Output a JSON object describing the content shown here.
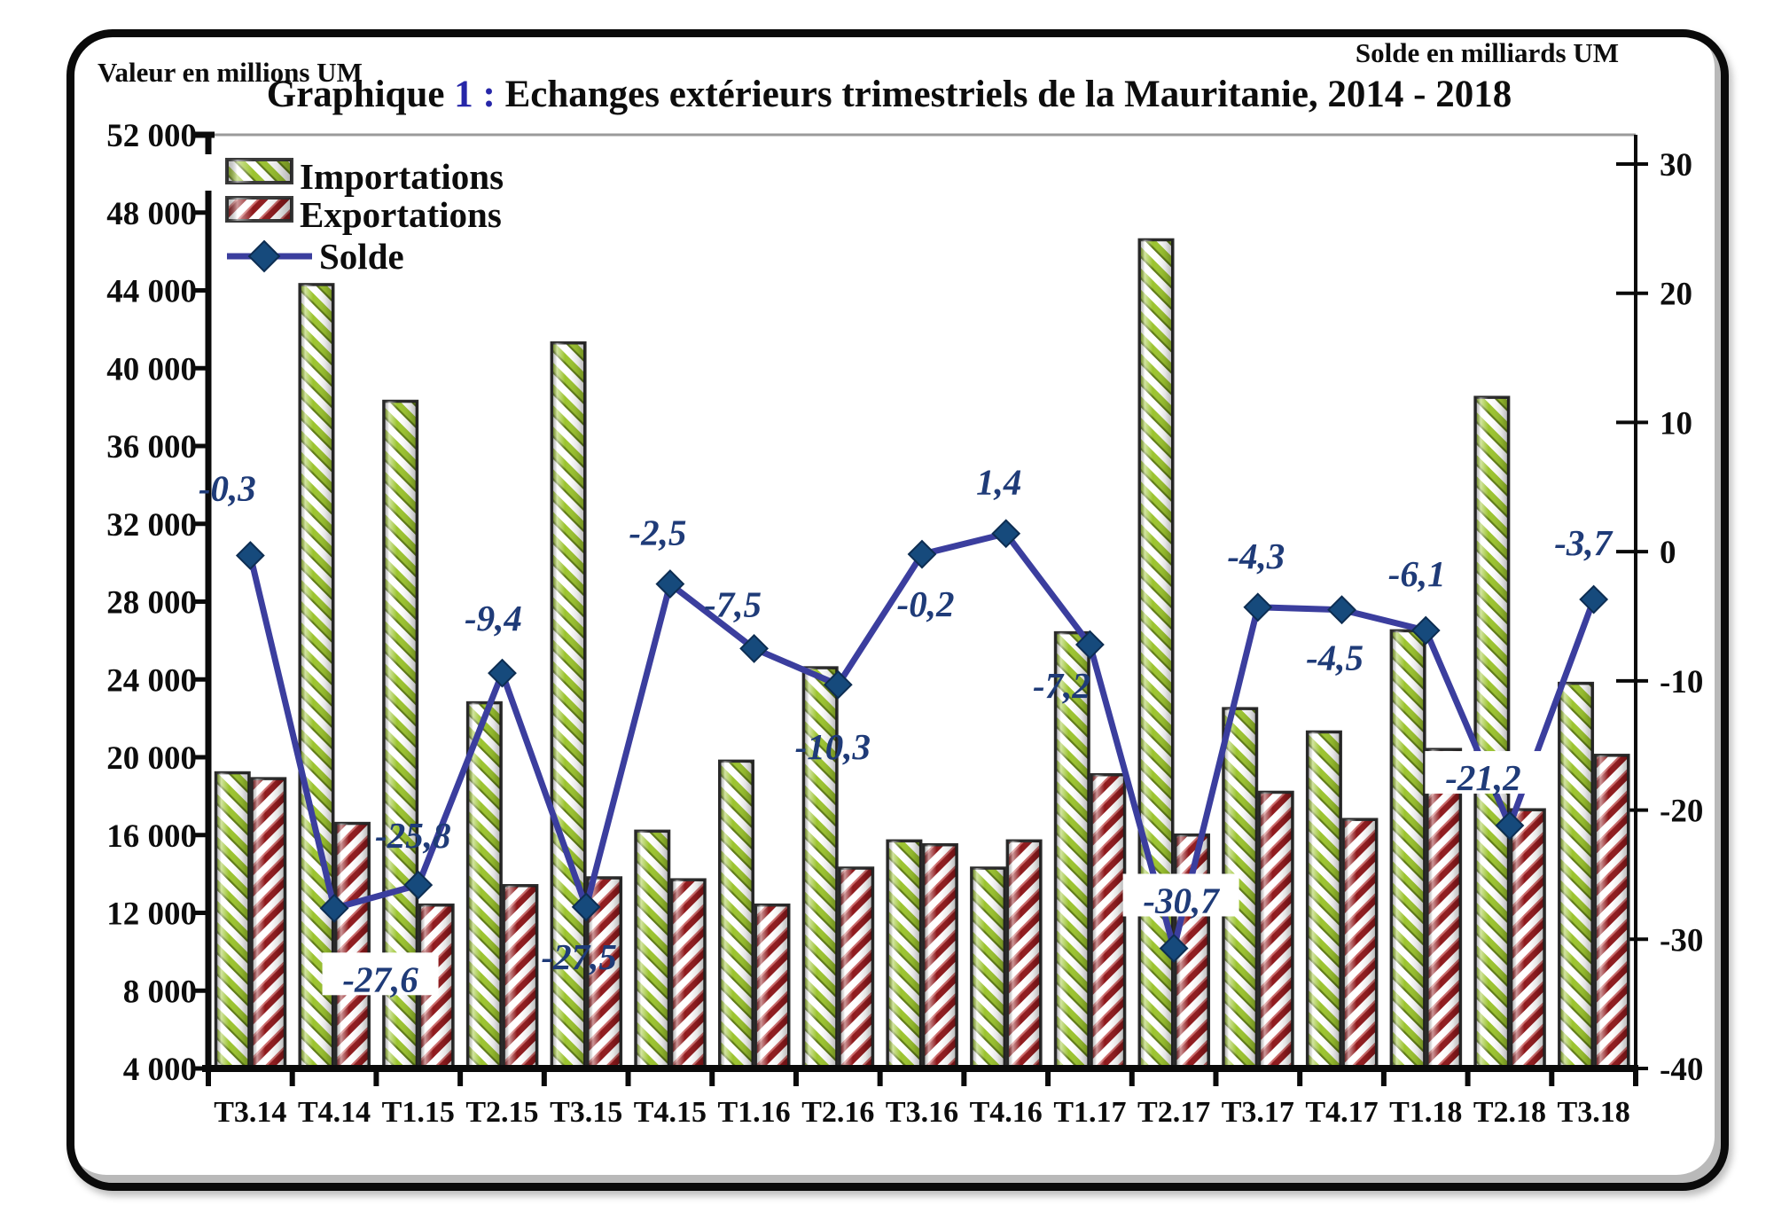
{
  "header": {
    "left_axis_title": "Valeur en millions UM",
    "right_axis_title": "Solde en milliards UM",
    "title_prefix": "Graphique ",
    "title_accent": "1 :",
    "title_rest": " Echanges extérieurs trimestriels de la Mauritanie, 2014 - 2018"
  },
  "legend": {
    "items": [
      {
        "label": "Importations",
        "swatch": "green-hatch-swatch"
      },
      {
        "label": "Exportations",
        "swatch": "red-hatch-swatch"
      },
      {
        "label": "Solde",
        "swatch": "line-diamond-swatch"
      }
    ]
  },
  "chart_data": {
    "type": "combo-bar-line",
    "title": "Graphique 1 : Echanges extérieurs trimestriels de la Mauritanie, 2014 - 2018",
    "categories": [
      "T3.14",
      "T4.14",
      "T1.15",
      "T2.15",
      "T3.15",
      "T4.15",
      "T1.16",
      "T2.16",
      "T3.16",
      "T4.16",
      "T1.17",
      "T2.17",
      "T3.17",
      "T4.17",
      "T1.18",
      "T2.18",
      "T3.18"
    ],
    "series": [
      {
        "name": "Importations",
        "type": "bar",
        "axis": "left",
        "values": [
          19200,
          44300,
          38300,
          22800,
          41300,
          16200,
          19800,
          24600,
          15700,
          14300,
          26400,
          46600,
          22500,
          21300,
          26500,
          38500,
          23800
        ]
      },
      {
        "name": "Exportations",
        "type": "bar",
        "axis": "left",
        "values": [
          18900,
          16600,
          12400,
          13400,
          13800,
          13700,
          12400,
          14300,
          15500,
          15700,
          19100,
          16000,
          18200,
          16800,
          20400,
          17300,
          20100
        ]
      },
      {
        "name": "Solde",
        "type": "line",
        "axis": "right",
        "values": [
          -0.3,
          -27.6,
          -25.8,
          -9.4,
          -27.5,
          -2.5,
          -7.5,
          -10.3,
          -0.2,
          1.4,
          -7.2,
          -30.7,
          -4.3,
          -4.5,
          -6.1,
          -21.2,
          -3.7
        ],
        "point_labels": [
          "-0,3",
          "-27,6",
          "-25,8",
          "-9,4",
          "-27,5",
          "-2,5",
          "-7,5",
          "-10,3",
          "-0,2",
          "1,4",
          "-7,2",
          "-30,7",
          "-4,3",
          "-4,5",
          "-6,1",
          "-21,2",
          "-3,7"
        ],
        "label_offsets": [
          [
            -26,
            -70
          ],
          [
            52,
            86
          ],
          [
            -6,
            -50
          ],
          [
            -10,
            -56
          ],
          [
            -8,
            62
          ],
          [
            -14,
            -52
          ],
          [
            -24,
            -44
          ],
          [
            -6,
            76
          ],
          [
            4,
            62
          ],
          [
            -8,
            -52
          ],
          [
            -32,
            52
          ],
          [
            8,
            -48
          ],
          [
            -2,
            -52
          ],
          [
            -8,
            60
          ],
          [
            -10,
            -58
          ],
          [
            -30,
            -48
          ],
          [
            -12,
            -58
          ]
        ],
        "label_boxed": [
          false,
          true,
          false,
          false,
          false,
          false,
          false,
          false,
          false,
          false,
          false,
          true,
          false,
          false,
          false,
          true,
          false
        ]
      }
    ],
    "y_left": {
      "title": "Valeur en millions UM",
      "min": 4000,
      "max": 52000,
      "step": 4000,
      "tick_labels": [
        "52 000",
        "48 000",
        "44 000",
        "40 000",
        "36 000",
        "32 000",
        "28 000",
        "24 000",
        "20 000",
        "16 000",
        "12 000",
        "8 000",
        "4 000"
      ]
    },
    "y_right": {
      "title": "Solde en milliards UM",
      "min": -40,
      "max": 30,
      "step": 10,
      "tick_labels": [
        "30",
        "20",
        "10",
        "0",
        "-10",
        "-20",
        "-30",
        "-40"
      ]
    },
    "legend_position": "top-left-inside",
    "grid": "off"
  },
  "colors": {
    "import_stripe": "#9cc42f",
    "import_stripe_dark": "#5e7a17",
    "export_stripe": "#8f191c",
    "export_stripe_light": "#cd6a6a",
    "bar_border": "#2b2b2b",
    "line": "#3b3e9e",
    "marker": "#164a7c",
    "marker_border": "#0d2d52",
    "data_label": "#1f3b78",
    "axis": "#0a0a0a",
    "top_border": "#9a9a9a",
    "text": "#0d0d0d",
    "title_accent": "#2626a8"
  }
}
